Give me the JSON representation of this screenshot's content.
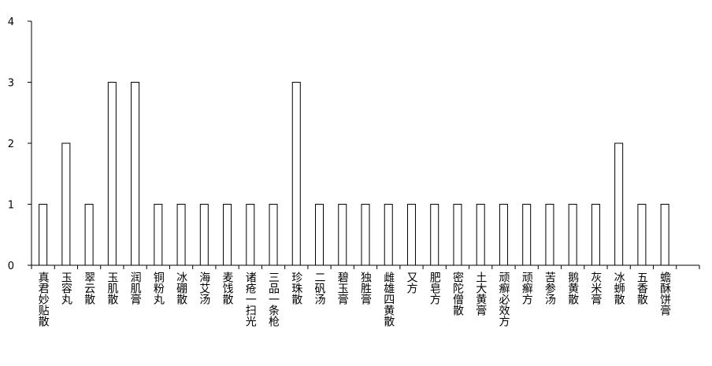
{
  "chart_data": {
    "type": "bar",
    "categories": [
      "真君妙贴散",
      "玉容丸",
      "翠云散",
      "玉肌散",
      "润肌膏",
      "铜粉丸",
      "冰硼散",
      "海艾汤",
      "麦饯散",
      "诸疮一扫光",
      "三品一条枪",
      "珍珠散",
      "二矾汤",
      "碧玉膏",
      "独胜膏",
      "雌雄四黄散",
      "又方",
      "肥皂方",
      "密陀僧散",
      "土大黄膏",
      "顽癣必效方",
      "顽癣方",
      "苦参汤",
      "鹅黄散",
      "灰米膏",
      "冰蛳散",
      "五香散",
      "蟾酥饼膏"
    ],
    "values": [
      1,
      2,
      1,
      3,
      3,
      1,
      1,
      1,
      1,
      1,
      1,
      3,
      1,
      1,
      1,
      1,
      1,
      1,
      1,
      1,
      1,
      1,
      1,
      1,
      1,
      2,
      1,
      1
    ],
    "color": "#ffffff",
    "ylim": [
      0,
      4
    ],
    "yticks": [
      0,
      1,
      2,
      3,
      4
    ],
    "grid": false
  }
}
